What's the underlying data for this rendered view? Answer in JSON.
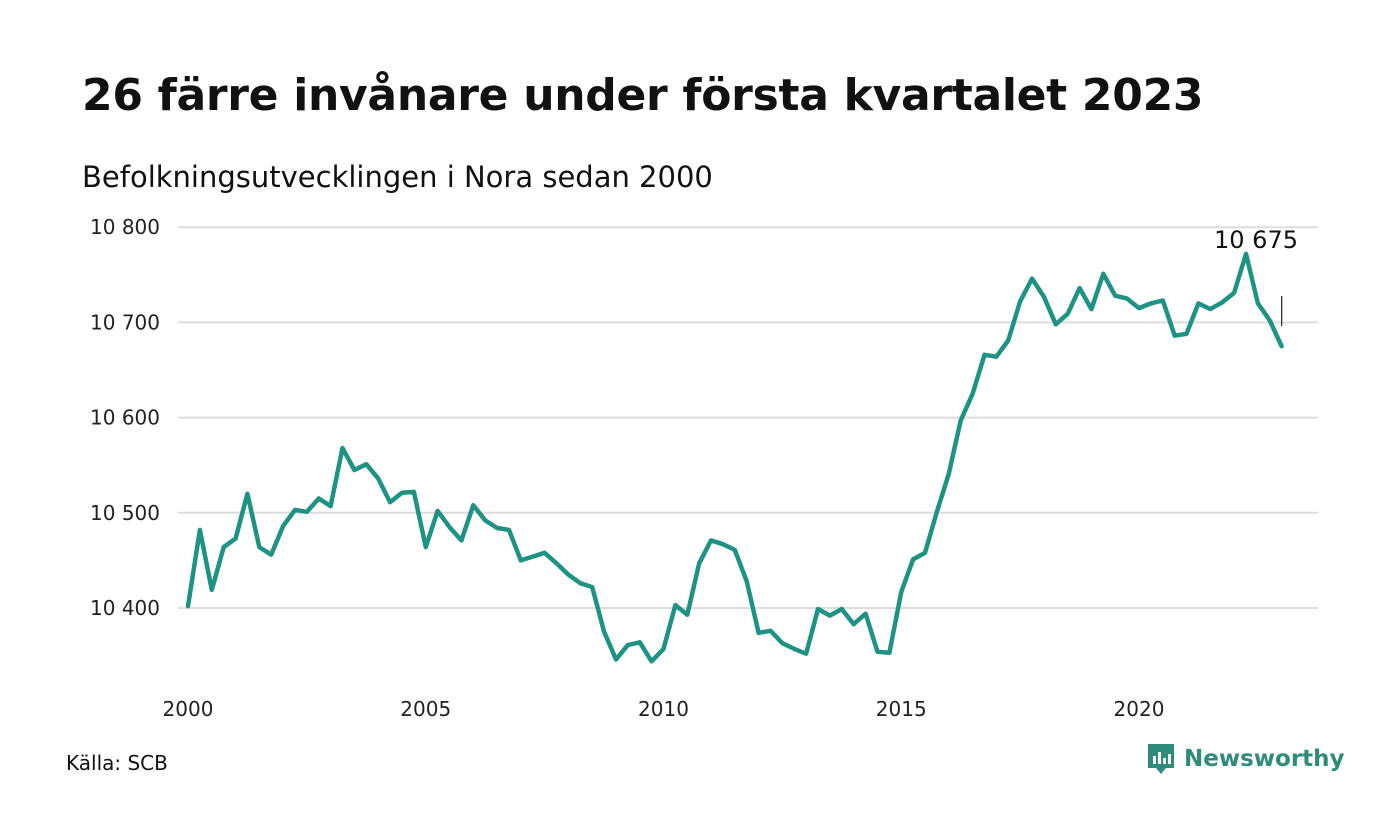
{
  "title": "26 färre invånare under första kvartalet 2023",
  "subtitle": "Befolkningsutvecklingen i Nora sedan 2000",
  "source": "Källa: SCB",
  "brand": {
    "name": "Newsworthy",
    "icon": "newsworthy-logo-icon",
    "color": "#2f8c7a"
  },
  "colors": {
    "line": "#1f9383",
    "grid": "#dddddd",
    "text": "#111111"
  },
  "chart_data": {
    "type": "line",
    "title": "26 färre invånare under första kvartalet 2023",
    "subtitle": "Befolkningsutvecklingen i Nora sedan 2000",
    "xlabel": "",
    "ylabel": "",
    "x_ticks": [
      2000,
      2005,
      2010,
      2015,
      2020
    ],
    "y_ticks": [
      10400,
      10500,
      10600,
      10700,
      10800
    ],
    "y_tick_labels": [
      "10 400",
      "10 500",
      "10 600",
      "10 700",
      "10 800"
    ],
    "xlim": [
      2000,
      2023.5
    ],
    "ylim": [
      10335,
      10815
    ],
    "grid": "horizontal",
    "annotation": {
      "text": "10 675",
      "x": 2023.0,
      "y": 10675
    },
    "series": [
      {
        "name": "",
        "x": [
          2000.0,
          2000.25,
          2000.5,
          2000.75,
          2001.0,
          2001.25,
          2001.5,
          2001.75,
          2002.0,
          2002.25,
          2002.5,
          2002.75,
          2003.0,
          2003.25,
          2003.5,
          2003.75,
          2004.0,
          2004.25,
          2004.5,
          2004.75,
          2005.0,
          2005.25,
          2005.5,
          2005.75,
          2006.0,
          2006.25,
          2006.5,
          2006.75,
          2007.0,
          2007.25,
          2007.5,
          2007.75,
          2008.0,
          2008.25,
          2008.5,
          2008.75,
          2009.0,
          2009.25,
          2009.5,
          2009.75,
          2010.0,
          2010.25,
          2010.5,
          2010.75,
          2011.0,
          2011.25,
          2011.5,
          2011.75,
          2012.0,
          2012.25,
          2012.5,
          2012.75,
          2013.0,
          2013.25,
          2013.5,
          2013.75,
          2014.0,
          2014.25,
          2014.5,
          2014.75,
          2015.0,
          2015.25,
          2015.5,
          2015.75,
          2016.0,
          2016.25,
          2016.5,
          2016.75,
          2017.0,
          2017.25,
          2017.5,
          2017.75,
          2018.0,
          2018.25,
          2018.5,
          2018.75,
          2019.0,
          2019.25,
          2019.5,
          2019.75,
          2020.0,
          2020.25,
          2020.5,
          2020.75,
          2021.0,
          2021.25,
          2021.5,
          2021.75,
          2022.0,
          2022.25,
          2022.5,
          2022.75,
          2023.0
        ],
        "values": [
          10402,
          10482,
          10419,
          10464,
          10473,
          10520,
          10464,
          10456,
          10486,
          10503,
          10501,
          10515,
          10507,
          10568,
          10545,
          10551,
          10536,
          10511,
          10521,
          10522,
          10464,
          10502,
          10485,
          10471,
          10508,
          10492,
          10484,
          10482,
          10450,
          10454,
          10458,
          10447,
          10435,
          10426,
          10422,
          10375,
          10346,
          10361,
          10364,
          10344,
          10357,
          10403,
          10393,
          10447,
          10471,
          10467,
          10461,
          10428,
          10374,
          10376,
          10363,
          10357,
          10352,
          10399,
          10392,
          10399,
          10383,
          10394,
          10354,
          10353,
          10417,
          10451,
          10458,
          10501,
          10541,
          10597,
          10625,
          10666,
          10664,
          10681,
          10722,
          10746,
          10727,
          10698,
          10709,
          10736,
          10714,
          10751,
          10728,
          10725,
          10715,
          10720,
          10723,
          10686,
          10688,
          10720,
          10714,
          10721,
          10731,
          10772,
          10720,
          10702,
          10675
        ]
      }
    ]
  }
}
